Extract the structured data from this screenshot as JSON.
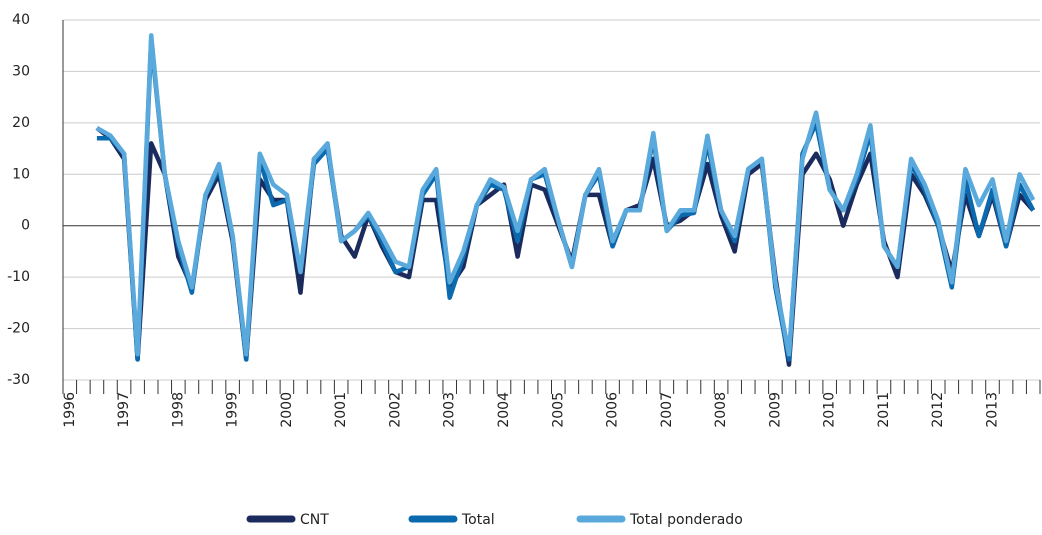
{
  "chart_data": {
    "type": "line",
    "categories": [
      "1996",
      null,
      null,
      null,
      "1997",
      null,
      null,
      null,
      "1998",
      null,
      null,
      null,
      "1999",
      null,
      null,
      null,
      "2000",
      null,
      null,
      null,
      "2001",
      null,
      null,
      null,
      "2002",
      null,
      null,
      null,
      "2003",
      null,
      null,
      null,
      "2004",
      null,
      null,
      null,
      "2005",
      null,
      null,
      null,
      "2006",
      null,
      null,
      null,
      "2007",
      null,
      null,
      null,
      "2008",
      null,
      null,
      null,
      "2009",
      null,
      null,
      null,
      "2010",
      null,
      null,
      null,
      "2011",
      null,
      null,
      null,
      "2012",
      null,
      null,
      null,
      "2013",
      null,
      null,
      null
    ],
    "series": [
      {
        "name": "CNT",
        "color": "#1b2b5e",
        "values": [
          null,
          null,
          19,
          17,
          13,
          -26,
          16,
          10,
          -6,
          -12,
          5,
          10,
          -3,
          -26,
          9,
          5,
          5,
          -13,
          13,
          15,
          -2,
          -6,
          2,
          -4,
          -9,
          -10,
          5,
          5,
          -12,
          -8,
          4,
          6,
          8,
          -6,
          8,
          7,
          0,
          -7,
          6,
          6,
          -4,
          3,
          4,
          13,
          0,
          1,
          3,
          12,
          2,
          -5,
          10,
          12,
          -10,
          -27,
          10,
          14,
          9,
          0,
          8,
          14,
          -3,
          -10,
          10,
          6,
          0,
          -9,
          6,
          -2,
          6,
          -4,
          6,
          3
        ]
      },
      {
        "name": "Total",
        "color": "#0b6aad",
        "values": [
          null,
          null,
          17,
          17,
          14,
          -26,
          36,
          10,
          -4,
          -13,
          6,
          11,
          -2,
          -26,
          13,
          4,
          5,
          -9,
          12,
          15,
          -3,
          -1,
          2,
          -3,
          -9,
          -8,
          6,
          10,
          -14,
          -6,
          4,
          8,
          7,
          -3,
          9,
          10,
          1,
          -8,
          6,
          10,
          -4,
          3,
          3,
          17,
          -1,
          2,
          2.5,
          16,
          3,
          -3,
          11,
          13,
          -12,
          -26,
          14,
          20,
          7,
          3,
          9,
          18,
          -4,
          -8,
          12,
          7,
          0,
          -12,
          9,
          -2,
          7,
          -4,
          8,
          3
        ]
      },
      {
        "name": "Total ponderado",
        "color": "#5aa9dc",
        "values": [
          null,
          null,
          19,
          17.5,
          14,
          -25,
          37,
          10,
          -3,
          -12,
          6,
          12,
          -2,
          -25,
          14,
          8,
          6,
          -9,
          13,
          16,
          -3,
          -1,
          2.5,
          -2,
          -7,
          -8,
          7,
          11,
          -11,
          -5,
          4,
          9,
          7.5,
          -1,
          9,
          11,
          1,
          -8,
          6,
          11,
          -3,
          3,
          3,
          18,
          -1,
          3,
          3,
          17.5,
          3,
          -2,
          11,
          13,
          -11,
          -25,
          13,
          22,
          7,
          3,
          10,
          19.5,
          -4,
          -8,
          13,
          8,
          1,
          -11,
          11,
          4,
          9,
          -3,
          10,
          5
        ]
      }
    ],
    "ylim": [
      -30,
      40
    ],
    "yticks": [
      -30,
      -20,
      -10,
      0,
      10,
      20,
      30,
      40
    ],
    "grid": true,
    "legend": "bottom"
  }
}
